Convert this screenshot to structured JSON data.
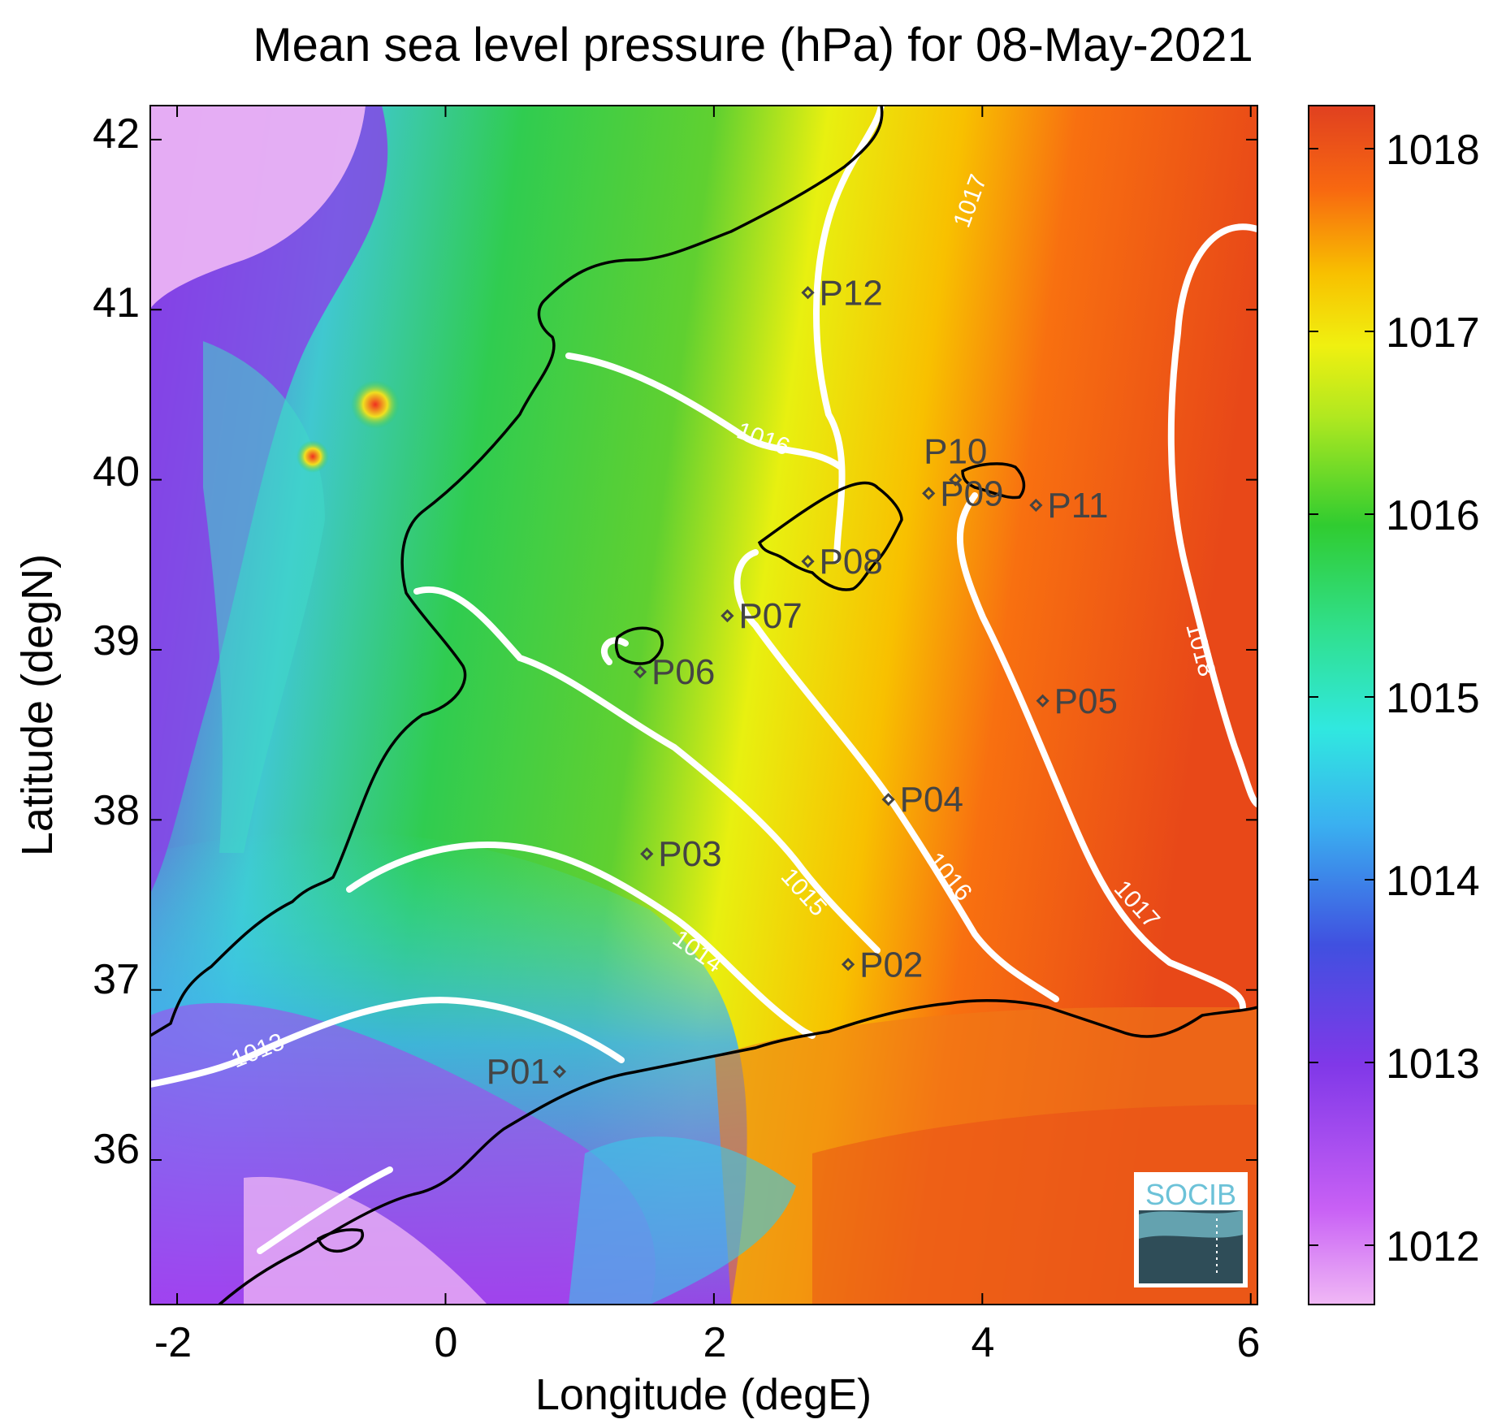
{
  "title": "Mean sea level pressure (hPa) for 08-May-2021",
  "xlabel": "Longitude (degE)",
  "ylabel": "Latitude (degN)",
  "x_ticks": [
    "-2",
    "0",
    "2",
    "4",
    "6"
  ],
  "y_ticks": [
    "42",
    "41",
    "40",
    "39",
    "38",
    "37",
    "36"
  ],
  "colorbar_ticks": [
    "1018",
    "1017",
    "1016",
    "1015",
    "1014",
    "1013",
    "1012"
  ],
  "contour_labels": [
    "1013",
    "1014",
    "1015",
    "1016",
    "1016",
    "1017",
    "1017",
    "1018"
  ],
  "stations": [
    {
      "id": "P01",
      "lon": 0.85,
      "lat": 36.52
    },
    {
      "id": "P02",
      "lon": 3.0,
      "lat": 37.15
    },
    {
      "id": "P03",
      "lon": 1.5,
      "lat": 37.8
    },
    {
      "id": "P04",
      "lon": 3.3,
      "lat": 38.12
    },
    {
      "id": "P05",
      "lon": 4.45,
      "lat": 38.7
    },
    {
      "id": "P06",
      "lon": 1.45,
      "lat": 38.87
    },
    {
      "id": "P07",
      "lon": 2.1,
      "lat": 39.2
    },
    {
      "id": "P08",
      "lon": 2.7,
      "lat": 39.52
    },
    {
      "id": "P09",
      "lon": 3.6,
      "lat": 39.92
    },
    {
      "id": "P10",
      "lon": 3.8,
      "lat": 40.0
    },
    {
      "id": "P11",
      "lon": 4.4,
      "lat": 39.85
    },
    {
      "id": "P12",
      "lon": 2.7,
      "lat": 41.1
    }
  ],
  "logo_text": "SOCIB",
  "colors": {
    "contour": "#ffffff",
    "coastline": "#000000",
    "station_marker": "#444444",
    "logo_accent": "#6cc2d8"
  },
  "chart_data": {
    "type": "heatmap",
    "title": "Mean sea level pressure (hPa) for 08-May-2021",
    "xlabel": "Longitude (degE)",
    "ylabel": "Latitude (degN)",
    "xlim": [
      -2.2,
      6.05
    ],
    "ylim": [
      35.15,
      42.2
    ],
    "colorbar_range": [
      1011.7,
      1018.25
    ],
    "colormap": [
      "#f0b8f5",
      "#b040f0",
      "#7a38e0",
      "#4090f0",
      "#30e8e0",
      "#28d070",
      "#30cc30",
      "#a0e020",
      "#f0f010",
      "#f8b000",
      "#f86010",
      "#e04020"
    ],
    "contour_levels": [
      1013,
      1014,
      1015,
      1016,
      1017,
      1018
    ],
    "grid": false
  }
}
